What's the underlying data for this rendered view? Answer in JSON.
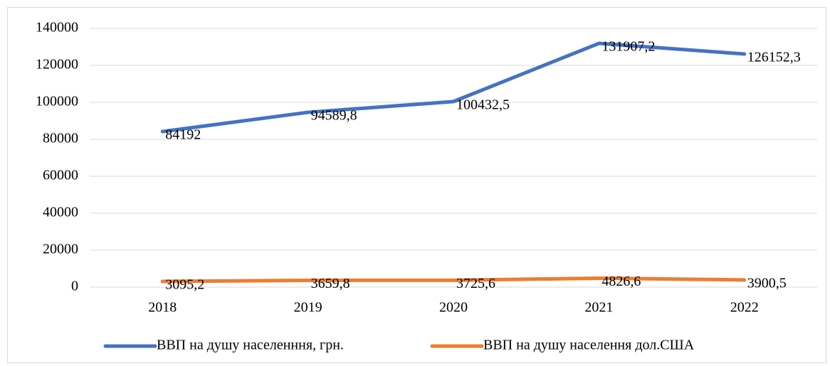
{
  "chart_data": {
    "type": "line",
    "categories": [
      "2018",
      "2019",
      "2020",
      "2021",
      "2022"
    ],
    "series": [
      {
        "name": "ВВП на душу населенння, грн.",
        "color": "#4472c4",
        "values": [
          84192,
          94589.8,
          100432.5,
          131907.2,
          126152.3
        ],
        "value_labels": [
          "84192",
          "94589,8",
          "100432,5",
          "131907,2",
          "126152,3"
        ]
      },
      {
        "name": "ВВП на душу населення дол.США",
        "color": "#ed7d31",
        "values": [
          3095.2,
          3659.8,
          3725.6,
          4826.6,
          3900.5
        ],
        "value_labels": [
          "3095,2",
          "3659,8",
          "3725,6",
          "4826,6",
          "3900,5"
        ]
      }
    ],
    "ylim": [
      0,
      140000
    ],
    "yticks": [
      0,
      20000,
      40000,
      60000,
      80000,
      100000,
      120000,
      140000
    ],
    "grid": true,
    "legend": "bottom"
  }
}
